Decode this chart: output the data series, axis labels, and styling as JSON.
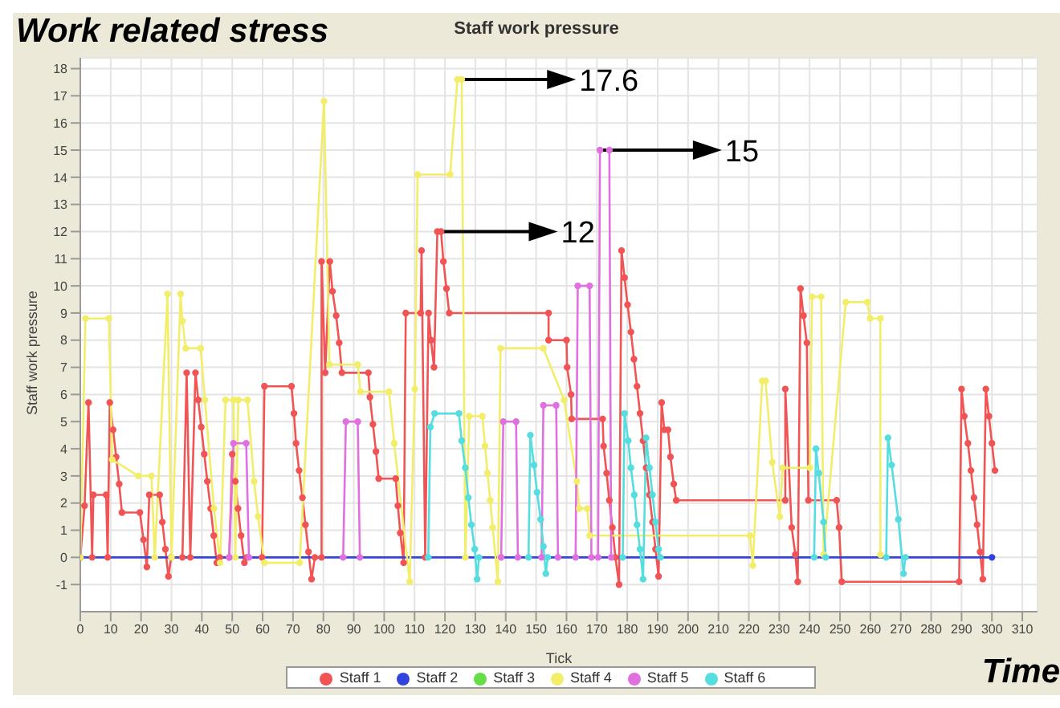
{
  "chart_data": {
    "type": "line",
    "title": "Staff work pressure",
    "xlabel": "Tick",
    "ylabel": "Staff work pressure",
    "annotations": [
      "Work related stress",
      "Time",
      {
        "text": "17.6",
        "x": 124,
        "y": 17.6
      },
      {
        "text": "12",
        "x": 118,
        "y": 12
      },
      {
        "text": "15",
        "x": 172,
        "y": 15
      }
    ],
    "xlim": [
      0,
      315
    ],
    "xticks": [
      0,
      10,
      20,
      30,
      40,
      50,
      60,
      70,
      80,
      90,
      100,
      110,
      120,
      130,
      140,
      150,
      160,
      170,
      180,
      190,
      200,
      210,
      220,
      230,
      240,
      250,
      260,
      270,
      280,
      290,
      300,
      310
    ],
    "ylim": [
      -2,
      18.4
    ],
    "yticks": [
      -1,
      0,
      1,
      2,
      3,
      4,
      5,
      6,
      7,
      8,
      9,
      10,
      11,
      12,
      13,
      14,
      15,
      16,
      17,
      18
    ],
    "grid": true,
    "legend": "bottom",
    "marker": "circle",
    "series": [
      {
        "name": "Staff 1",
        "color": "#f05454",
        "x": [
          0,
          1.4,
          2.7,
          3.9,
          4.3,
          8.5,
          9,
          9.7,
          10.8,
          11.8,
          12.8,
          13.7,
          19.6,
          20.8,
          21.9,
          22.7,
          26.1,
          27,
          28,
          29,
          29.9,
          33.6,
          35,
          36.2,
          37.9,
          38.8,
          39.8,
          40.8,
          41.8,
          42.9,
          43.9,
          44.9,
          45.9,
          49,
          50,
          51,
          51.9,
          52.9,
          54,
          54.8,
          59.8,
          60.6,
          69.5,
          70.3,
          71,
          72,
          73.1,
          74.1,
          75.1,
          76.1,
          77.2,
          79.4,
          79.4,
          80.6,
          82.1,
          83,
          84.2,
          85.2,
          86.1,
          94.8,
          95.3,
          96.3,
          97.3,
          98.2,
          103.8,
          104.5,
          105.3,
          106.4,
          107.1,
          112,
          112.3,
          113.5,
          114.6,
          115.4,
          116.4,
          117.5,
          118.7,
          119.5,
          120.5,
          121.4,
          154.1,
          154.1,
          160,
          160.2,
          161.5,
          161.7,
          171.9,
          172.2,
          173.2,
          174.1,
          175.1,
          176.1,
          177.3,
          178.1,
          179.1,
          180.1,
          181.2,
          182.2,
          183.2,
          184.2,
          185.2,
          186.2,
          187.3,
          188.3,
          189.3,
          190.3,
          191.3,
          192.2,
          193.4,
          194.2,
          195.3,
          196.1,
          232,
          232,
          234.1,
          235.3,
          236.1,
          237,
          238,
          239.1,
          239.6,
          248.9,
          249.7,
          250.6,
          289.2,
          290,
          290.9,
          292.1,
          293.1,
          294.1,
          295.1,
          296.1,
          297,
          298,
          299,
          300,
          301
        ],
        "values": [
          0,
          1.9,
          5.7,
          0,
          2.3,
          2.3,
          0,
          5.7,
          4.7,
          3.7,
          2.7,
          1.65,
          1.65,
          0.65,
          -0.35,
          2.3,
          2.3,
          1.3,
          0.3,
          -0.7,
          0,
          0,
          6.8,
          0,
          6.8,
          5.8,
          4.8,
          3.8,
          2.8,
          1.8,
          0.8,
          -0.2,
          0,
          0,
          3.8,
          2.8,
          1.8,
          0.8,
          -0.2,
          0,
          0,
          6.3,
          6.3,
          5.3,
          4.2,
          3.2,
          2.2,
          1.2,
          0.2,
          -0.8,
          0,
          0,
          10.9,
          6.8,
          10.9,
          9.8,
          8.9,
          7.9,
          6.8,
          6.8,
          5.9,
          4.9,
          3.9,
          2.9,
          2.9,
          1.9,
          0.9,
          -0.2,
          9,
          9,
          11.3,
          0,
          9,
          8,
          7,
          12,
          12,
          10.9,
          9.9,
          9,
          9,
          8,
          8,
          7,
          6,
          5.1,
          5.1,
          4.1,
          3.1,
          2.1,
          1.1,
          0,
          -1,
          11.3,
          10.3,
          9.3,
          8.3,
          7.3,
          6.3,
          5.3,
          4.3,
          3.3,
          2.3,
          1.3,
          0.3,
          -0.7,
          5.7,
          4.7,
          4.7,
          3.7,
          2.7,
          2.1,
          2.1,
          6.2,
          1.1,
          0.1,
          -0.9,
          9.9,
          8.9,
          7.9,
          2.1,
          2.1,
          1.1,
          -0.9,
          -0.9,
          6.2,
          5.2,
          4.2,
          3.2,
          2.2,
          1.2,
          0.2,
          -0.8,
          6.2,
          5.2,
          4.2,
          3.2
        ]
      },
      {
        "name": "Staff 2",
        "color": "#3344dd",
        "x": [
          0,
          300
        ],
        "values": [
          0,
          0
        ]
      },
      {
        "name": "Staff 3",
        "color": "#66dd44"
      },
      {
        "name": "Staff 4",
        "color": "#f2ee6a",
        "x": [
          0,
          1.7,
          9.4,
          10.5,
          19.1,
          23.4,
          24.5,
          28.7,
          30,
          33,
          33.6,
          34.7,
          39.6,
          41,
          44,
          46,
          47.8,
          50.4,
          51,
          52,
          55,
          57.2,
          58.5,
          60.6,
          72.2,
          80.2,
          82,
          91.3,
          92.2,
          101.6,
          103.3,
          108.4,
          110.1,
          111,
          121.7,
          124.1,
          125.5,
          126.7,
          128,
          132.3,
          133.2,
          134,
          134.9,
          135.7,
          137.4,
          138.3,
          152.4,
          159.2,
          163.4,
          164.2,
          166.8,
          167.6,
          220.4,
          221.3,
          224.4,
          225.5,
          227.7,
          230.2,
          231.1,
          240.1,
          240.8,
          243.8,
          244.6,
          251.9,
          259,
          259.9,
          263.3,
          263.3
        ],
        "values": [
          0,
          8.8,
          8.8,
          3.6,
          3,
          3,
          0,
          9.7,
          0,
          9.7,
          8.7,
          7.7,
          7.7,
          5.8,
          1.8,
          -0.2,
          5.8,
          5.8,
          0,
          5.8,
          5.8,
          2.8,
          1.5,
          -0.2,
          -0.2,
          16.8,
          7.1,
          7.1,
          6.1,
          6.1,
          4.2,
          -0.9,
          6.2,
          14.1,
          14.1,
          17.6,
          17.6,
          0,
          5.2,
          5.2,
          4.1,
          3.1,
          2.1,
          1.1,
          -0.9,
          7.7,
          7.7,
          5.8,
          2.8,
          1.8,
          1.8,
          0.8,
          0.8,
          -0.3,
          6.5,
          6.5,
          3.5,
          1.5,
          3.3,
          3.3,
          9.6,
          9.6,
          0.1,
          9.4,
          9.4,
          8.8,
          8.8,
          0.1
        ]
      },
      {
        "name": "Staff 5",
        "color": "#e070e0",
        "x": [
          49,
          50.4,
          54.6,
          55.5,
          70,
          86.5,
          87.4,
          91.3,
          92,
          110,
          138.5,
          139.2,
          143.4,
          144,
          148,
          151.8,
          152.4,
          156.6,
          157.2,
          160,
          163,
          163.7,
          167.6,
          168.2,
          169,
          170.4,
          171,
          174.1,
          174.7
        ],
        "values": [
          0,
          4.2,
          4.2,
          0,
          null,
          0,
          5,
          5,
          0,
          null,
          0,
          5,
          5,
          0,
          null,
          0,
          5.6,
          5.6,
          0,
          null,
          0,
          10,
          10,
          0,
          null,
          0,
          15,
          15,
          0
        ]
      },
      {
        "name": "Staff 6",
        "color": "#55dde0",
        "x": [
          114.5,
          115.2,
          116.6,
          124.6,
          125.5,
          126.7,
          127.7,
          128.7,
          129.8,
          130.6,
          131.2,
          140,
          147.5,
          148.1,
          149.3,
          150.3,
          151.5,
          152.4,
          153.2,
          153.8,
          165,
          178.5,
          179.1,
          180.3,
          181.2,
          182.3,
          183.2,
          184.2,
          185.2,
          186.2,
          187.3,
          188.3,
          189.3,
          190.3,
          190.9,
          220,
          241.5,
          242.1,
          243,
          244.6,
          245.3,
          255,
          265.2,
          265.8,
          267,
          269.2,
          270.9,
          271.5
        ],
        "values": [
          0,
          4.8,
          5.3,
          5.3,
          4.3,
          3.3,
          2.2,
          1.2,
          0.3,
          -0.8,
          0,
          null,
          0,
          4.5,
          3.4,
          2.4,
          1.4,
          0.4,
          -0.6,
          0,
          null,
          0,
          5.3,
          4.3,
          3.3,
          2.3,
          1.2,
          0.3,
          -0.8,
          4.4,
          3.3,
          2.3,
          1.3,
          0.3,
          0,
          null,
          0,
          4,
          3.1,
          1.3,
          0,
          null,
          0,
          4.4,
          3.4,
          1.4,
          -0.6,
          0
        ]
      }
    ]
  }
}
